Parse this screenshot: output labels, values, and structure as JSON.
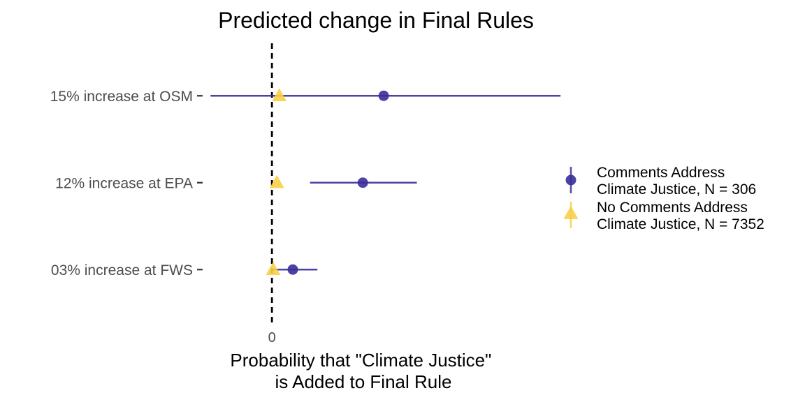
{
  "chart_data": {
    "type": "scatter",
    "title": "Predicted change in Final Rules",
    "xlabel_lines": [
      "Probability that \"Climate Justice\"",
      "is Added to Final Rule"
    ],
    "ylabel": "",
    "categories": [
      "15% increase at OSM",
      "12% increase at EPA",
      "03% increase at FWS"
    ],
    "x_ticks": [
      0
    ],
    "x_tick_labels": [
      "0"
    ],
    "xlim": [
      -0.0265,
      0.1055
    ],
    "reference_line": {
      "x": 0,
      "style": "dashed"
    },
    "grid": false,
    "legend_position": "right",
    "series": [
      {
        "name": "Comments Address\nClimate Justice, N = 306",
        "legend_lines": [
          "Comments Address",
          "Climate Justice, N = 306"
        ],
        "marker": "circle",
        "color": "#3a2e9a",
        "points": [
          {
            "category": "15% increase at OSM",
            "estimate": 0.0455,
            "ci": [
              -0.025,
              0.1175
            ]
          },
          {
            "category": "12% increase at EPA",
            "estimate": 0.037,
            "ci": [
              0.0155,
              0.059
            ]
          },
          {
            "category": "03% increase at FWS",
            "estimate": 0.0085,
            "ci": [
              0.0,
              0.0185
            ]
          }
        ]
      },
      {
        "name": "No Comments Address\nClimate Justice, N = 7352",
        "legend_lines": [
          "No Comments Address",
          "Climate Justice, N = 7352"
        ],
        "marker": "triangle",
        "color": "#f7cf46",
        "points": [
          {
            "category": "15% increase at OSM",
            "estimate": 0.003
          },
          {
            "category": "12% increase at EPA",
            "estimate": 0.002
          },
          {
            "category": "03% increase at FWS",
            "estimate": 0.0005
          }
        ]
      }
    ]
  }
}
